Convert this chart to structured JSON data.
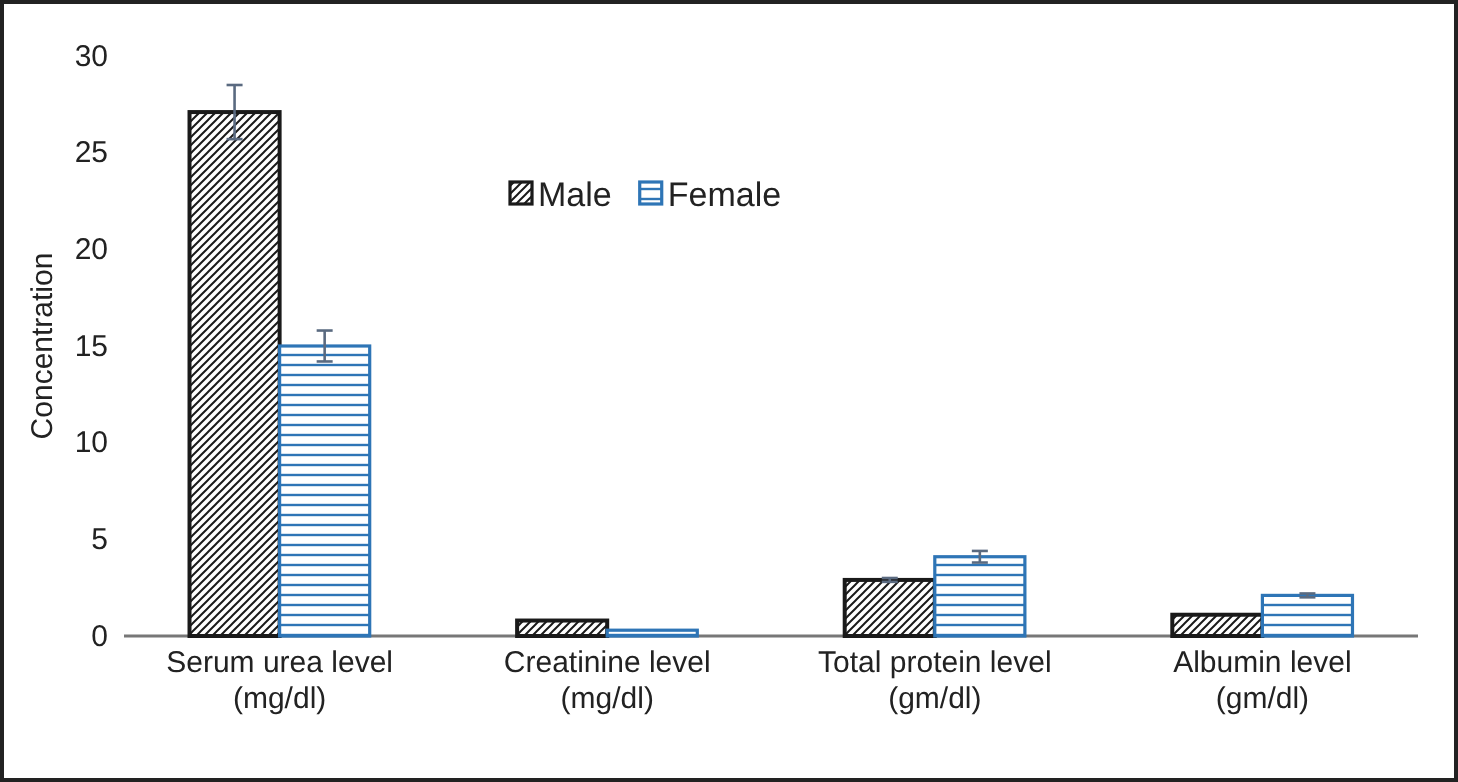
{
  "chart_data": {
    "type": "bar",
    "ylabel": "Concentration",
    "categories": [
      "Serum urea level\n(mg/dl)",
      "Creatinine level\n(mg/dl)",
      "Total protein level\n(gm/dl)",
      "Albumin level\n(gm/dl)"
    ],
    "series": [
      {
        "name": "Male",
        "color": "#1a1a1a",
        "values": [
          27.1,
          0.8,
          2.9,
          1.1
        ],
        "errors": [
          1.4,
          null,
          0.1,
          null
        ]
      },
      {
        "name": "Female",
        "color": "#2e75b6",
        "values": [
          15.0,
          0.3,
          4.1,
          2.1
        ],
        "errors": [
          0.8,
          null,
          0.3,
          0.1
        ]
      }
    ],
    "ylim": [
      0,
      30
    ],
    "yticks": [
      0,
      5,
      10,
      15,
      20,
      25,
      30
    ],
    "legend": "top"
  }
}
